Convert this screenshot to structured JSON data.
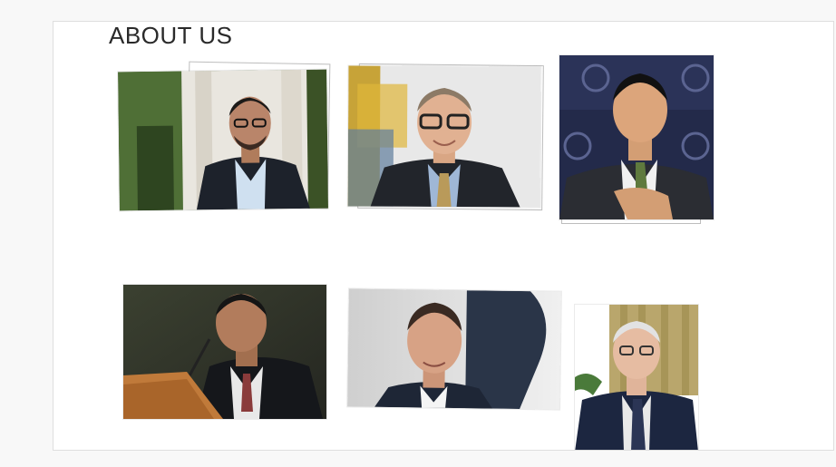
{
  "header": {
    "title": "ABOUT US"
  },
  "gallery": {
    "photos": [
      {
        "icon": "person-photo-icon"
      },
      {
        "icon": "person-photo-icon"
      },
      {
        "icon": "person-photo-icon"
      },
      {
        "icon": "person-photo-icon"
      },
      {
        "icon": "person-photo-icon"
      },
      {
        "icon": "person-photo-icon"
      }
    ]
  }
}
